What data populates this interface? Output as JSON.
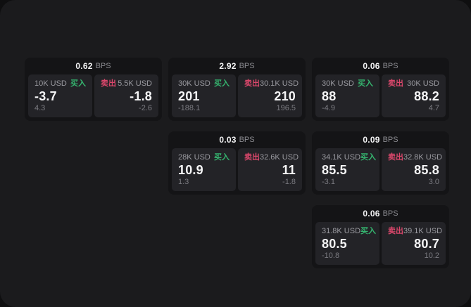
{
  "board": {
    "unit_label": "BPS",
    "buy_label": "买入",
    "sell_label": "卖出"
  },
  "colors": {
    "buy": "#35b56f",
    "sell": "#da476b",
    "surface": "#1b1b1d",
    "card": "#141416",
    "panel": "#232327"
  },
  "cards": [
    {
      "col": 1,
      "row": 1,
      "bps": "0.62",
      "buy": {
        "size": "10K USD",
        "value": "-3.7",
        "sub": "4.3"
      },
      "sell": {
        "size": "5.5K USD",
        "value": "-1.8",
        "sub": "-2.6"
      }
    },
    {
      "col": 2,
      "row": 1,
      "bps": "2.92",
      "buy": {
        "size": "30K USD",
        "value": "201",
        "sub": "-188.1"
      },
      "sell": {
        "size": "30.1K USD",
        "value": "210",
        "sub": "196.5"
      }
    },
    {
      "col": 3,
      "row": 1,
      "bps": "0.06",
      "buy": {
        "size": "30K USD",
        "value": "88",
        "sub": "-4.9"
      },
      "sell": {
        "size": "30K USD",
        "value": "88.2",
        "sub": "4.7"
      }
    },
    {
      "col": 2,
      "row": 2,
      "bps": "0.03",
      "buy": {
        "size": "28K USD",
        "value": "10.9",
        "sub": "1.3"
      },
      "sell": {
        "size": "32.6K USD",
        "value": "11",
        "sub": "-1.8"
      }
    },
    {
      "col": 3,
      "row": 2,
      "bps": "0.09",
      "buy": {
        "size": "34.1K USD",
        "value": "85.5",
        "sub": "-3.1"
      },
      "sell": {
        "size": "32.8K USD",
        "value": "85.8",
        "sub": "3.0"
      }
    },
    {
      "col": 3,
      "row": 3,
      "bps": "0.06",
      "buy": {
        "size": "31.8K USD",
        "value": "80.5",
        "sub": "-10.8"
      },
      "sell": {
        "size": "39.1K USD",
        "value": "80.7",
        "sub": "10.2"
      }
    }
  ]
}
